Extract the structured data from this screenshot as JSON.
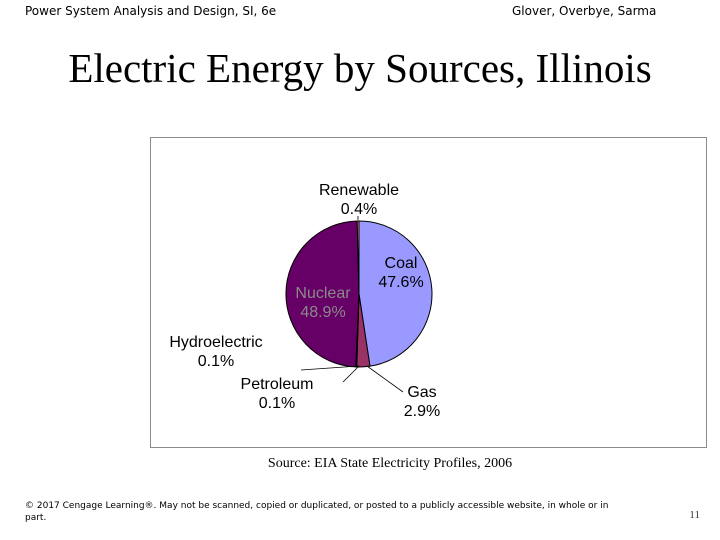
{
  "header": {
    "left": "Power System Analysis and Design, SI, 6e",
    "right": "Glover, Overbye, Sarma"
  },
  "title": "Electric Energy by Sources, Illinois",
  "chart_data": {
    "type": "pie",
    "title": "",
    "slices": [
      {
        "label": "Coal",
        "value": 47.6,
        "value_label": "47.6%",
        "color": "#9999ff"
      },
      {
        "label": "Gas",
        "value": 2.9,
        "value_label": "2.9%",
        "color": "#993366"
      },
      {
        "label": "Petroleum",
        "value": 0.1,
        "value_label": "0.1%",
        "color": "#ffffcc"
      },
      {
        "label": "Hydroelectric",
        "value": 0.1,
        "value_label": "0.1%",
        "color": "#ccffff"
      },
      {
        "label": "Nuclear",
        "value": 48.9,
        "value_label": "48.9%",
        "color": "#660066"
      },
      {
        "label": "Renewable",
        "value": 0.4,
        "value_label": "0.4%",
        "color": "#ff8080"
      }
    ],
    "label_color_nuclear": "#8a8a8a"
  },
  "source": "Source: EIA State Electricity Profiles, 2006",
  "footer": {
    "copyright": "© 2017 Cengage Learning®. May not be scanned, copied or duplicated, or posted to a publicly accessible website, in whole or in part.",
    "page_number": "11"
  }
}
